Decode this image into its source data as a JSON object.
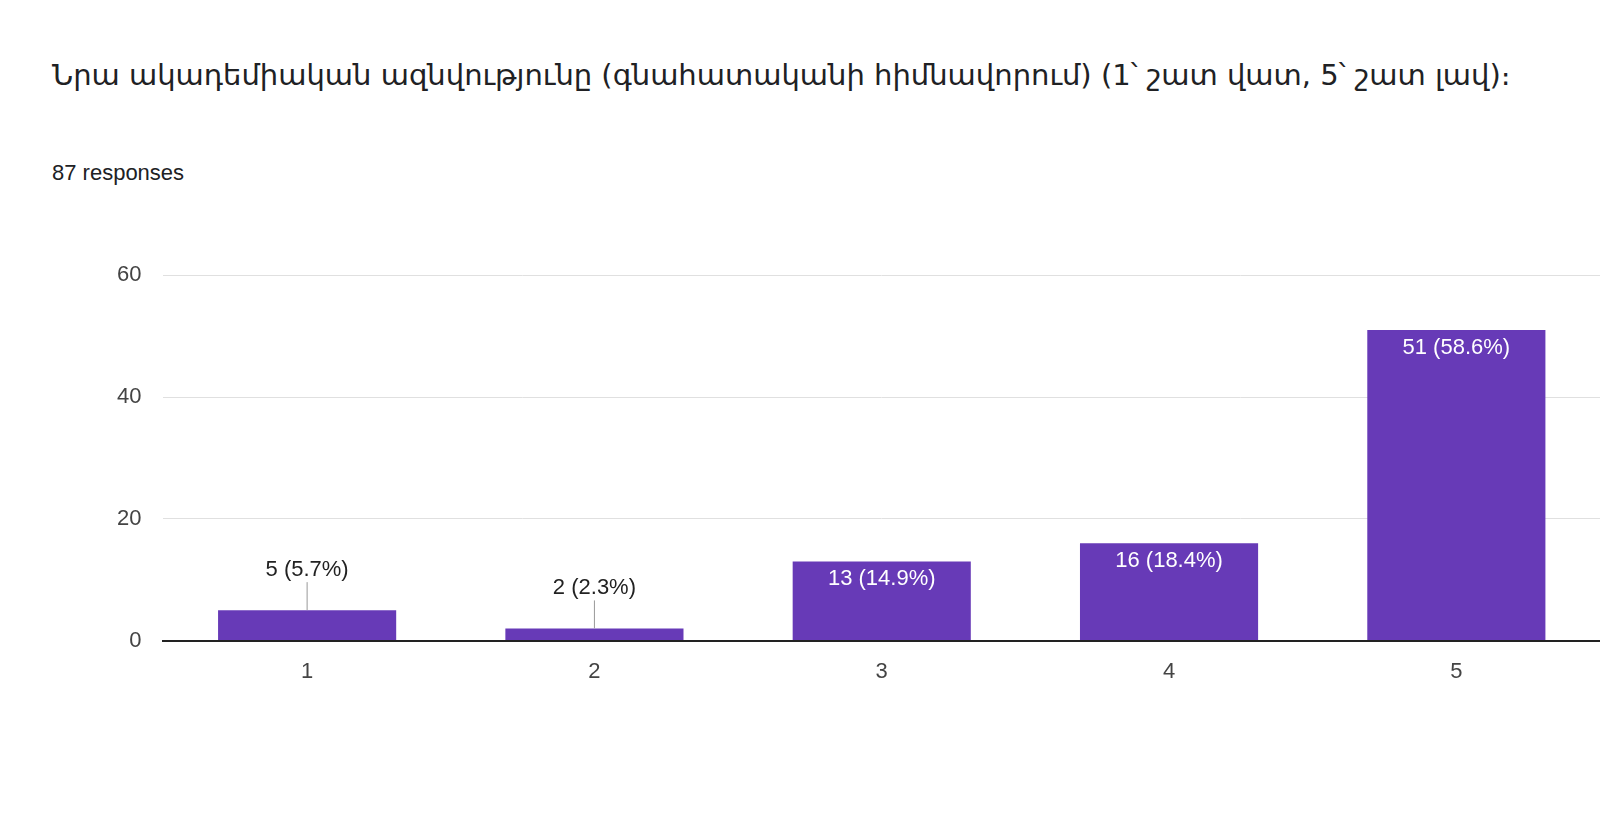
{
  "chart_data": {
    "type": "bar",
    "title": "Նրա ակադեմիական ազնվությունը (գնահատականի հիմնավորում)  (1՝ շատ վատ, 5՝ շատ լավ)։",
    "subtitle": "87 responses",
    "categories": [
      "1",
      "2",
      "3",
      "4",
      "5"
    ],
    "values": [
      5,
      2,
      13,
      16,
      51
    ],
    "value_labels": [
      "5 (5.7%)",
      "2 (2.3%)",
      "13 (14.9%)",
      "16 (18.4%)",
      "51 (58.6%)"
    ],
    "color": "#673ab7",
    "ylim": [
      0,
      60
    ],
    "yticks": [
      0,
      20,
      40,
      60
    ],
    "grid": true,
    "data_labels": true
  }
}
